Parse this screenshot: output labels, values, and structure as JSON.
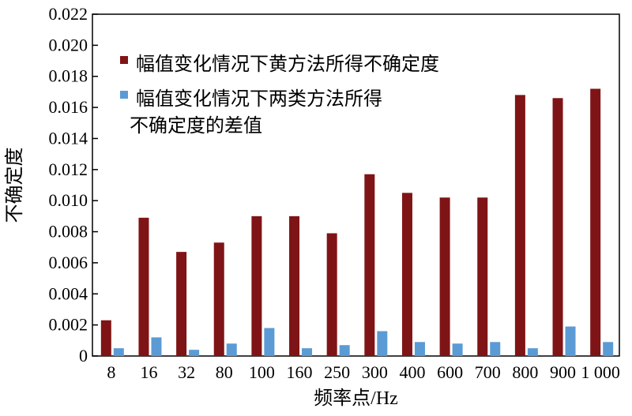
{
  "chart_data": {
    "type": "bar",
    "title": "",
    "xlabel": "频率点/Hz",
    "ylabel": "不确定度",
    "categories": [
      "8",
      "16",
      "32",
      "80",
      "100",
      "160",
      "250",
      "300",
      "400",
      "600",
      "700",
      "800",
      "900",
      "1 000"
    ],
    "ylim": [
      0,
      0.022
    ],
    "yticks": [
      "0",
      "0.002",
      "0.004",
      "0.006",
      "0.008",
      "0.010",
      "0.012",
      "0.014",
      "0.016",
      "0.018",
      "0.020",
      "0.022"
    ],
    "grid": false,
    "legend_position": "top-left",
    "series": [
      {
        "name": "幅值变化情况下黄方法所得不确定度",
        "color": "#7f1416",
        "values": [
          0.0023,
          0.0089,
          0.0067,
          0.0073,
          0.009,
          0.009,
          0.0079,
          0.0117,
          0.0105,
          0.0102,
          0.0102,
          0.0168,
          0.0166,
          0.0172
        ]
      },
      {
        "name": "幅值变化情况下两类方法所得不确定度的差值",
        "color": "#5b9bd5",
        "values": [
          0.0005,
          0.0012,
          0.0004,
          0.0008,
          0.0018,
          0.0005,
          0.0007,
          0.0016,
          0.0009,
          0.0008,
          0.0009,
          0.0005,
          0.0019,
          0.0009
        ]
      }
    ],
    "legend_lines": [
      [
        "幅值变化情况下黄方法所得不确定度"
      ],
      [
        "幅值变化情况下两类方法所得",
        "不确定度的差值"
      ]
    ]
  }
}
